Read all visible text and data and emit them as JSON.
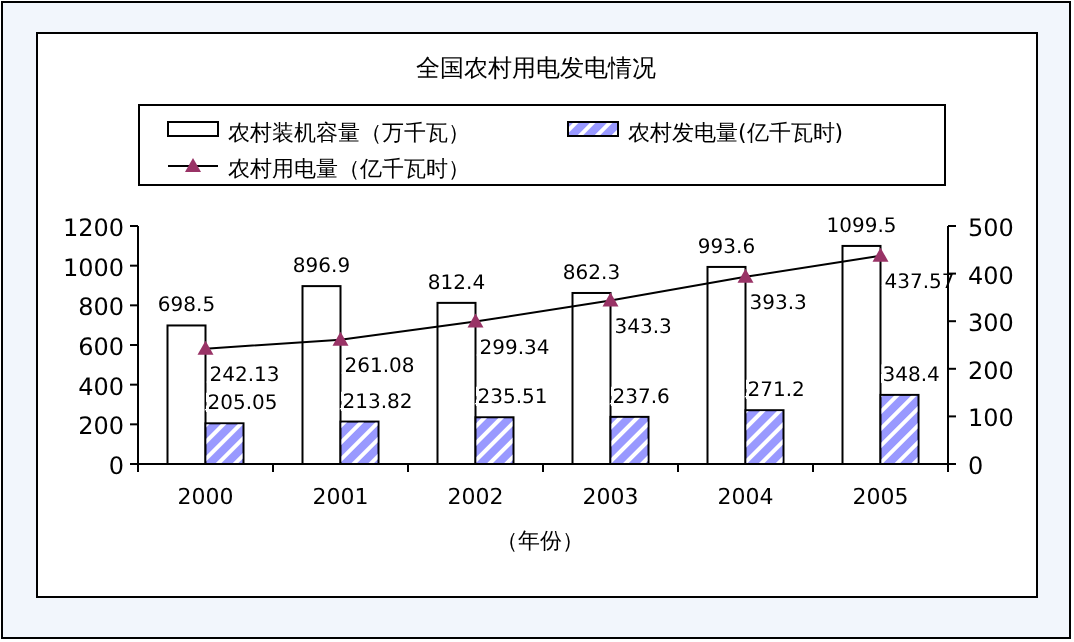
{
  "chart_data": {
    "type": "bar",
    "title": "全国农村用电发电情况",
    "xlabel": "（年份）",
    "categories": [
      "2000",
      "2001",
      "2002",
      "2003",
      "2004",
      "2005"
    ],
    "series": [
      {
        "name": "农村装机容量（万千瓦）",
        "color": "#ffffff",
        "values": [
          698.5,
          896.9,
          812.4,
          862.3,
          993.6,
          1099.5
        ]
      },
      {
        "name": "农村发电量(亿千瓦时)",
        "color": "#9999ff",
        "values": [
          205.05,
          213.82,
          235.51,
          237.6,
          271.2,
          348.4
        ]
      },
      {
        "name": "农村用电量（亿千瓦时）",
        "type": "line",
        "axis": "y2",
        "marker": "triangle",
        "color": "#993366",
        "values": [
          242.13,
          261.08,
          299.34,
          343.3,
          393.3,
          437.57
        ]
      }
    ],
    "ylim": [
      0,
      1200
    ],
    "yticks": [
      0,
      200,
      400,
      600,
      800,
      1000,
      1200
    ],
    "y2lim": [
      0,
      500
    ],
    "y2ticks": [
      0,
      100,
      200,
      300,
      400,
      500
    ],
    "data_labels": true,
    "legend": "top",
    "grid": false
  }
}
